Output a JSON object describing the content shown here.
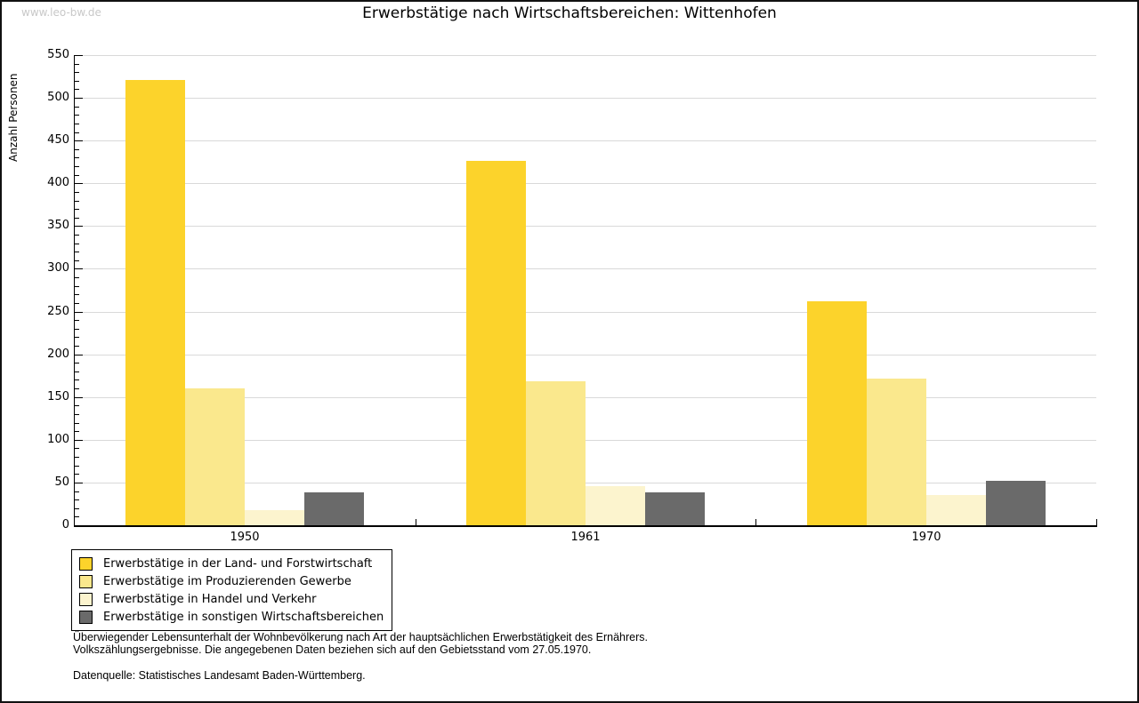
{
  "watermark": "www.leo-bw.de",
  "header": {
    "title": "Erwerbstätige nach Wirtschaftsbereichen: Wittenhofen"
  },
  "chart_data": {
    "type": "bar",
    "title": "Erwerbstätige nach Wirtschaftsbereichen: Wittenhofen",
    "ylabel": "Anzahl Personen",
    "xlabel": "",
    "categories": [
      "1950",
      "1961",
      "1970"
    ],
    "series": [
      {
        "name": "Erwerbstätige in der Land- und Forstwirtschaft",
        "color": "#FCD32B",
        "values": [
          521,
          426,
          262
        ]
      },
      {
        "name": "Erwerbstätige im Produzierenden Gewerbe",
        "color": "#FAE88D",
        "values": [
          160,
          168,
          172
        ]
      },
      {
        "name": "Erwerbstätige in Handel und Verkehr",
        "color": "#FCF4CE",
        "values": [
          18,
          46,
          35
        ]
      },
      {
        "name": "Erwerbstätige in sonstigen Wirtschaftsbereichen",
        "color": "#6A6A6A",
        "values": [
          38,
          38,
          52
        ]
      }
    ],
    "ylim": [
      0,
      550
    ],
    "ytick_step": 50,
    "yminor_step": 10,
    "grid": true,
    "gridline_color": "#d9d9d9",
    "axis_color": "#000000",
    "legend_position": "bottom-left"
  },
  "footnote": {
    "line1": "Überwiegender Lebensunterhalt der Wohnbevölkerung nach Art der hauptsächlichen Erwerbstätigkeit des Ernährers.",
    "line2": "Volkszählungsergebnisse. Die angegebenen Daten beziehen sich auf den Gebietsstand vom 27.05.1970.",
    "source": "Datenquelle: Statistisches Landesamt Baden-Württemberg."
  }
}
